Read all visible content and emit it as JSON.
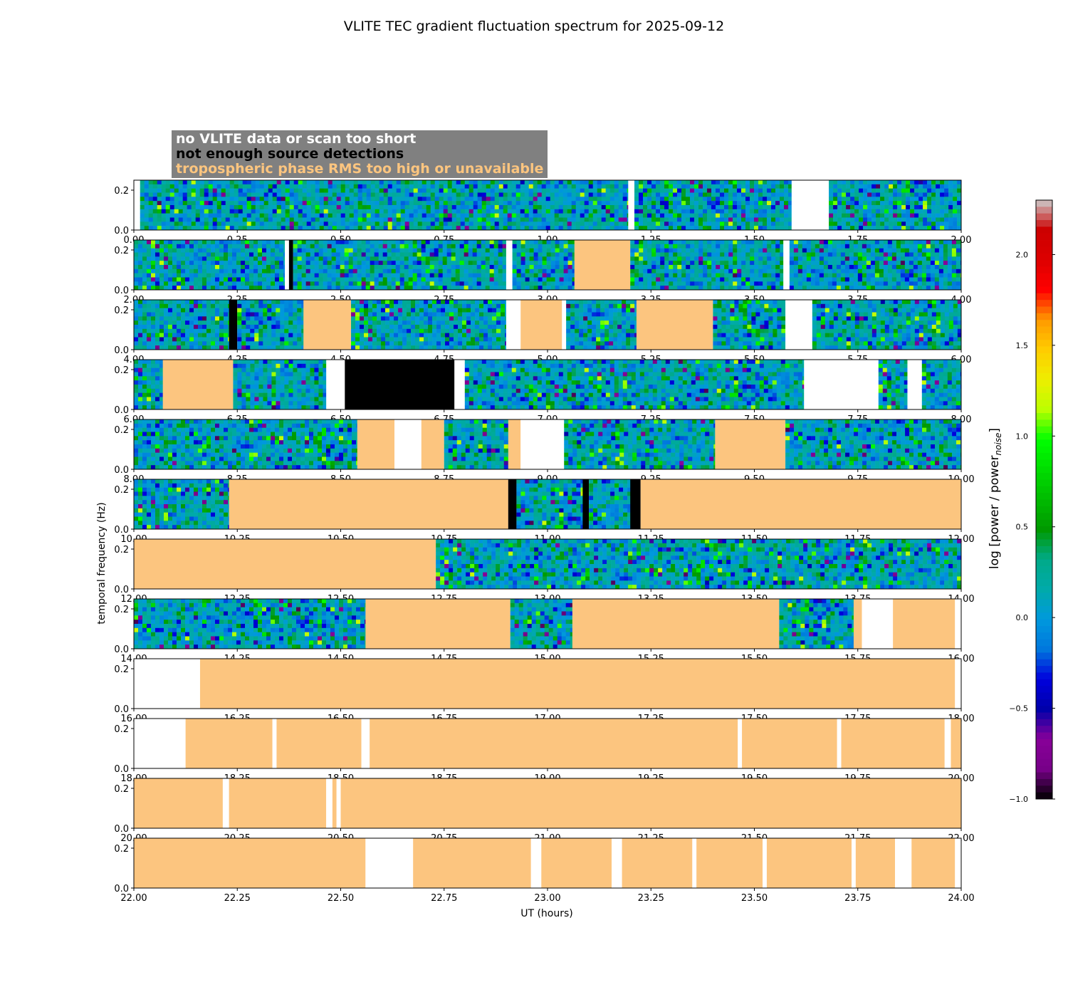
{
  "title": "VLITE TEC gradient fluctuation spectrum for 2025-09-12",
  "ylabel": "temporal frequency (Hz)",
  "xlabel": "UT (hours)",
  "colorbar": {
    "label": "log [power / power",
    "label_sub": "noise",
    "label_end": "]",
    "range": [
      -1.0,
      2.3
    ],
    "ticks": [
      "2.0",
      "1.5",
      "1.0",
      "0.5",
      "0.0",
      "−0.5",
      "−1.0"
    ],
    "tick_values": [
      2.0,
      1.5,
      1.0,
      0.5,
      0.0,
      -0.5,
      -1.0
    ]
  },
  "legend": [
    {
      "label": "no VLITE data or scan too short",
      "color": "#ffffff"
    },
    {
      "label": "not enough source detections",
      "color": "#000000"
    },
    {
      "label": "tropospheric phase RMS too high or unavailable",
      "color": "#fcc57f"
    }
  ],
  "colors": {
    "nodata": "#ffffff",
    "nodet": "#000000",
    "trop": "#fcc57f",
    "legend_bg": "#808080"
  },
  "chart_data": {
    "type": "heatmap",
    "title": "VLITE TEC gradient fluctuation spectrum for 2025-09-12",
    "xlabel": "UT (hours)",
    "ylabel": "temporal frequency (Hz)",
    "ylim": [
      0,
      0.25
    ],
    "yticks": [
      "0.0",
      "0.2"
    ],
    "panels": [
      {
        "xlim": [
          0,
          2
        ],
        "xticks": [
          "0.00",
          "0.25",
          "0.50",
          "0.75",
          "1.00",
          "1.25",
          "1.50",
          "1.75",
          "2.00"
        ],
        "segments": [
          {
            "start": 0.0,
            "end": 0.015,
            "cat": "nodata"
          },
          {
            "start": 0.015,
            "end": 1.195,
            "cat": "data"
          },
          {
            "start": 1.195,
            "end": 1.21,
            "cat": "nodata"
          },
          {
            "start": 1.21,
            "end": 1.59,
            "cat": "data"
          },
          {
            "start": 1.59,
            "end": 1.68,
            "cat": "nodata"
          },
          {
            "start": 1.68,
            "end": 2.0,
            "cat": "data"
          }
        ]
      },
      {
        "xlim": [
          2,
          4
        ],
        "xticks": [
          "2.00",
          "2.25",
          "2.50",
          "2.75",
          "3.00",
          "3.25",
          "3.50",
          "3.75",
          "4.00"
        ],
        "segments": [
          {
            "start": 2.0,
            "end": 2.365,
            "cat": "data"
          },
          {
            "start": 2.365,
            "end": 2.375,
            "cat": "nodata"
          },
          {
            "start": 2.375,
            "end": 2.385,
            "cat": "nodet"
          },
          {
            "start": 2.385,
            "end": 2.9,
            "cat": "data"
          },
          {
            "start": 2.9,
            "end": 2.915,
            "cat": "nodata"
          },
          {
            "start": 2.915,
            "end": 3.065,
            "cat": "data"
          },
          {
            "start": 3.065,
            "end": 3.2,
            "cat": "trop"
          },
          {
            "start": 3.2,
            "end": 3.57,
            "cat": "data"
          },
          {
            "start": 3.57,
            "end": 3.585,
            "cat": "nodata"
          },
          {
            "start": 3.585,
            "end": 4.0,
            "cat": "data"
          }
        ]
      },
      {
        "xlim": [
          4,
          6
        ],
        "xticks": [
          "4.00",
          "4.25",
          "4.50",
          "4.75",
          "5.00",
          "5.25",
          "5.50",
          "5.75",
          "6.00"
        ],
        "segments": [
          {
            "start": 4.0,
            "end": 4.23,
            "cat": "data"
          },
          {
            "start": 4.23,
            "end": 4.25,
            "cat": "nodet"
          },
          {
            "start": 4.25,
            "end": 4.41,
            "cat": "data"
          },
          {
            "start": 4.41,
            "end": 4.525,
            "cat": "trop"
          },
          {
            "start": 4.525,
            "end": 4.9,
            "cat": "data"
          },
          {
            "start": 4.9,
            "end": 4.935,
            "cat": "nodata"
          },
          {
            "start": 4.935,
            "end": 5.035,
            "cat": "trop"
          },
          {
            "start": 5.035,
            "end": 5.045,
            "cat": "nodata"
          },
          {
            "start": 5.045,
            "end": 5.215,
            "cat": "data"
          },
          {
            "start": 5.215,
            "end": 5.4,
            "cat": "trop"
          },
          {
            "start": 5.4,
            "end": 5.575,
            "cat": "data"
          },
          {
            "start": 5.575,
            "end": 5.64,
            "cat": "nodata"
          },
          {
            "start": 5.64,
            "end": 6.0,
            "cat": "data"
          }
        ]
      },
      {
        "xlim": [
          6,
          8
        ],
        "xticks": [
          "6.00",
          "6.25",
          "6.50",
          "6.75",
          "7.00",
          "7.25",
          "7.50",
          "7.75",
          "8.00"
        ],
        "segments": [
          {
            "start": 6.0,
            "end": 6.07,
            "cat": "data"
          },
          {
            "start": 6.07,
            "end": 6.24,
            "cat": "trop"
          },
          {
            "start": 6.24,
            "end": 6.465,
            "cat": "data"
          },
          {
            "start": 6.465,
            "end": 6.51,
            "cat": "nodata"
          },
          {
            "start": 6.51,
            "end": 6.775,
            "cat": "nodet"
          },
          {
            "start": 6.775,
            "end": 6.8,
            "cat": "nodata"
          },
          {
            "start": 6.8,
            "end": 7.62,
            "cat": "data"
          },
          {
            "start": 7.62,
            "end": 7.8,
            "cat": "nodata"
          },
          {
            "start": 7.8,
            "end": 7.87,
            "cat": "data"
          },
          {
            "start": 7.87,
            "end": 7.905,
            "cat": "nodata"
          },
          {
            "start": 7.905,
            "end": 8.0,
            "cat": "data"
          }
        ]
      },
      {
        "xlim": [
          8,
          10
        ],
        "xticks": [
          "8.00",
          "8.25",
          "8.50",
          "8.75",
          "9.00",
          "9.25",
          "9.50",
          "9.75",
          "10.00"
        ],
        "segments": [
          {
            "start": 8.0,
            "end": 8.54,
            "cat": "data"
          },
          {
            "start": 8.54,
            "end": 8.63,
            "cat": "trop"
          },
          {
            "start": 8.63,
            "end": 8.695,
            "cat": "nodata"
          },
          {
            "start": 8.695,
            "end": 8.75,
            "cat": "trop"
          },
          {
            "start": 8.75,
            "end": 8.905,
            "cat": "data"
          },
          {
            "start": 8.905,
            "end": 8.935,
            "cat": "trop"
          },
          {
            "start": 8.935,
            "end": 9.04,
            "cat": "nodata"
          },
          {
            "start": 9.04,
            "end": 9.405,
            "cat": "data"
          },
          {
            "start": 9.405,
            "end": 9.575,
            "cat": "trop"
          },
          {
            "start": 9.575,
            "end": 10.0,
            "cat": "data"
          }
        ]
      },
      {
        "xlim": [
          10,
          12
        ],
        "xticks": [
          "10.00",
          "10.25",
          "10.50",
          "10.75",
          "11.00",
          "11.25",
          "11.50",
          "11.75",
          "12.00"
        ],
        "segments": [
          {
            "start": 10.0,
            "end": 10.23,
            "cat": "data"
          },
          {
            "start": 10.23,
            "end": 10.905,
            "cat": "trop"
          },
          {
            "start": 10.905,
            "end": 10.925,
            "cat": "nodet"
          },
          {
            "start": 10.925,
            "end": 11.085,
            "cat": "data"
          },
          {
            "start": 11.085,
            "end": 11.1,
            "cat": "nodet"
          },
          {
            "start": 11.1,
            "end": 11.2,
            "cat": "data"
          },
          {
            "start": 11.2,
            "end": 11.225,
            "cat": "nodet"
          },
          {
            "start": 11.225,
            "end": 12.0,
            "cat": "trop"
          }
        ]
      },
      {
        "xlim": [
          12,
          14
        ],
        "xticks": [
          "12.00",
          "12.25",
          "12.50",
          "12.75",
          "13.00",
          "13.25",
          "13.50",
          "13.75",
          "14.00"
        ],
        "segments": [
          {
            "start": 12.0,
            "end": 12.73,
            "cat": "trop"
          },
          {
            "start": 12.73,
            "end": 14.0,
            "cat": "data"
          }
        ]
      },
      {
        "xlim": [
          14,
          16
        ],
        "xticks": [
          "14.00",
          "14.25",
          "14.50",
          "14.75",
          "15.00",
          "15.25",
          "15.50",
          "15.75",
          "16.00"
        ],
        "segments": [
          {
            "start": 14.0,
            "end": 14.56,
            "cat": "data"
          },
          {
            "start": 14.56,
            "end": 14.91,
            "cat": "trop"
          },
          {
            "start": 14.91,
            "end": 15.06,
            "cat": "data"
          },
          {
            "start": 15.06,
            "end": 15.56,
            "cat": "trop"
          },
          {
            "start": 15.56,
            "end": 15.74,
            "cat": "data"
          },
          {
            "start": 15.74,
            "end": 15.76,
            "cat": "trop"
          },
          {
            "start": 15.76,
            "end": 15.835,
            "cat": "nodata"
          },
          {
            "start": 15.835,
            "end": 15.985,
            "cat": "trop"
          },
          {
            "start": 15.985,
            "end": 16.0,
            "cat": "nodata"
          }
        ]
      },
      {
        "xlim": [
          16,
          18
        ],
        "xticks": [
          "16.00",
          "16.25",
          "16.50",
          "16.75",
          "17.00",
          "17.25",
          "17.50",
          "17.75",
          "18.00"
        ],
        "segments": [
          {
            "start": 16.0,
            "end": 16.16,
            "cat": "nodata"
          },
          {
            "start": 16.16,
            "end": 17.985,
            "cat": "trop"
          },
          {
            "start": 17.985,
            "end": 18.0,
            "cat": "nodata"
          }
        ]
      },
      {
        "xlim": [
          18,
          20
        ],
        "xticks": [
          "18.00",
          "18.25",
          "18.50",
          "18.75",
          "19.00",
          "19.25",
          "19.50",
          "19.75",
          "20.00"
        ],
        "segments": [
          {
            "start": 18.0,
            "end": 18.125,
            "cat": "nodata"
          },
          {
            "start": 18.125,
            "end": 18.335,
            "cat": "trop"
          },
          {
            "start": 18.335,
            "end": 18.345,
            "cat": "nodata"
          },
          {
            "start": 18.345,
            "end": 18.55,
            "cat": "trop"
          },
          {
            "start": 18.55,
            "end": 18.57,
            "cat": "nodata"
          },
          {
            "start": 18.57,
            "end": 19.46,
            "cat": "trop"
          },
          {
            "start": 19.46,
            "end": 19.47,
            "cat": "nodata"
          },
          {
            "start": 19.47,
            "end": 19.7,
            "cat": "trop"
          },
          {
            "start": 19.7,
            "end": 19.71,
            "cat": "nodata"
          },
          {
            "start": 19.71,
            "end": 19.96,
            "cat": "trop"
          },
          {
            "start": 19.96,
            "end": 19.975,
            "cat": "nodata"
          },
          {
            "start": 19.975,
            "end": 20.0,
            "cat": "trop"
          }
        ]
      },
      {
        "xlim": [
          20,
          22
        ],
        "xticks": [
          "20.00",
          "20.25",
          "20.50",
          "20.75",
          "21.00",
          "21.25",
          "21.50",
          "21.75",
          "22.00"
        ],
        "segments": [
          {
            "start": 20.0,
            "end": 20.215,
            "cat": "trop"
          },
          {
            "start": 20.215,
            "end": 20.23,
            "cat": "nodata"
          },
          {
            "start": 20.23,
            "end": 20.465,
            "cat": "trop"
          },
          {
            "start": 20.465,
            "end": 20.48,
            "cat": "nodata"
          },
          {
            "start": 20.48,
            "end": 20.49,
            "cat": "trop"
          },
          {
            "start": 20.49,
            "end": 20.5,
            "cat": "nodata"
          },
          {
            "start": 20.5,
            "end": 22.0,
            "cat": "trop"
          }
        ]
      },
      {
        "xlim": [
          22,
          24
        ],
        "xticks": [
          "22.00",
          "22.25",
          "22.50",
          "22.75",
          "23.00",
          "23.25",
          "23.50",
          "23.75",
          "24.00"
        ],
        "segments": [
          {
            "start": 22.0,
            "end": 22.56,
            "cat": "trop"
          },
          {
            "start": 22.56,
            "end": 22.675,
            "cat": "nodata"
          },
          {
            "start": 22.675,
            "end": 22.96,
            "cat": "trop"
          },
          {
            "start": 22.96,
            "end": 22.985,
            "cat": "nodata"
          },
          {
            "start": 22.985,
            "end": 23.155,
            "cat": "trop"
          },
          {
            "start": 23.155,
            "end": 23.18,
            "cat": "nodata"
          },
          {
            "start": 23.18,
            "end": 23.35,
            "cat": "trop"
          },
          {
            "start": 23.35,
            "end": 23.36,
            "cat": "nodata"
          },
          {
            "start": 23.36,
            "end": 23.52,
            "cat": "trop"
          },
          {
            "start": 23.52,
            "end": 23.53,
            "cat": "nodata"
          },
          {
            "start": 23.53,
            "end": 23.735,
            "cat": "trop"
          },
          {
            "start": 23.735,
            "end": 23.745,
            "cat": "nodata"
          },
          {
            "start": 23.745,
            "end": 23.84,
            "cat": "trop"
          },
          {
            "start": 23.84,
            "end": 23.88,
            "cat": "nodata"
          },
          {
            "start": 23.88,
            "end": 23.985,
            "cat": "trop"
          },
          {
            "start": 23.985,
            "end": 24.0,
            "cat": "nodata"
          }
        ]
      }
    ]
  }
}
